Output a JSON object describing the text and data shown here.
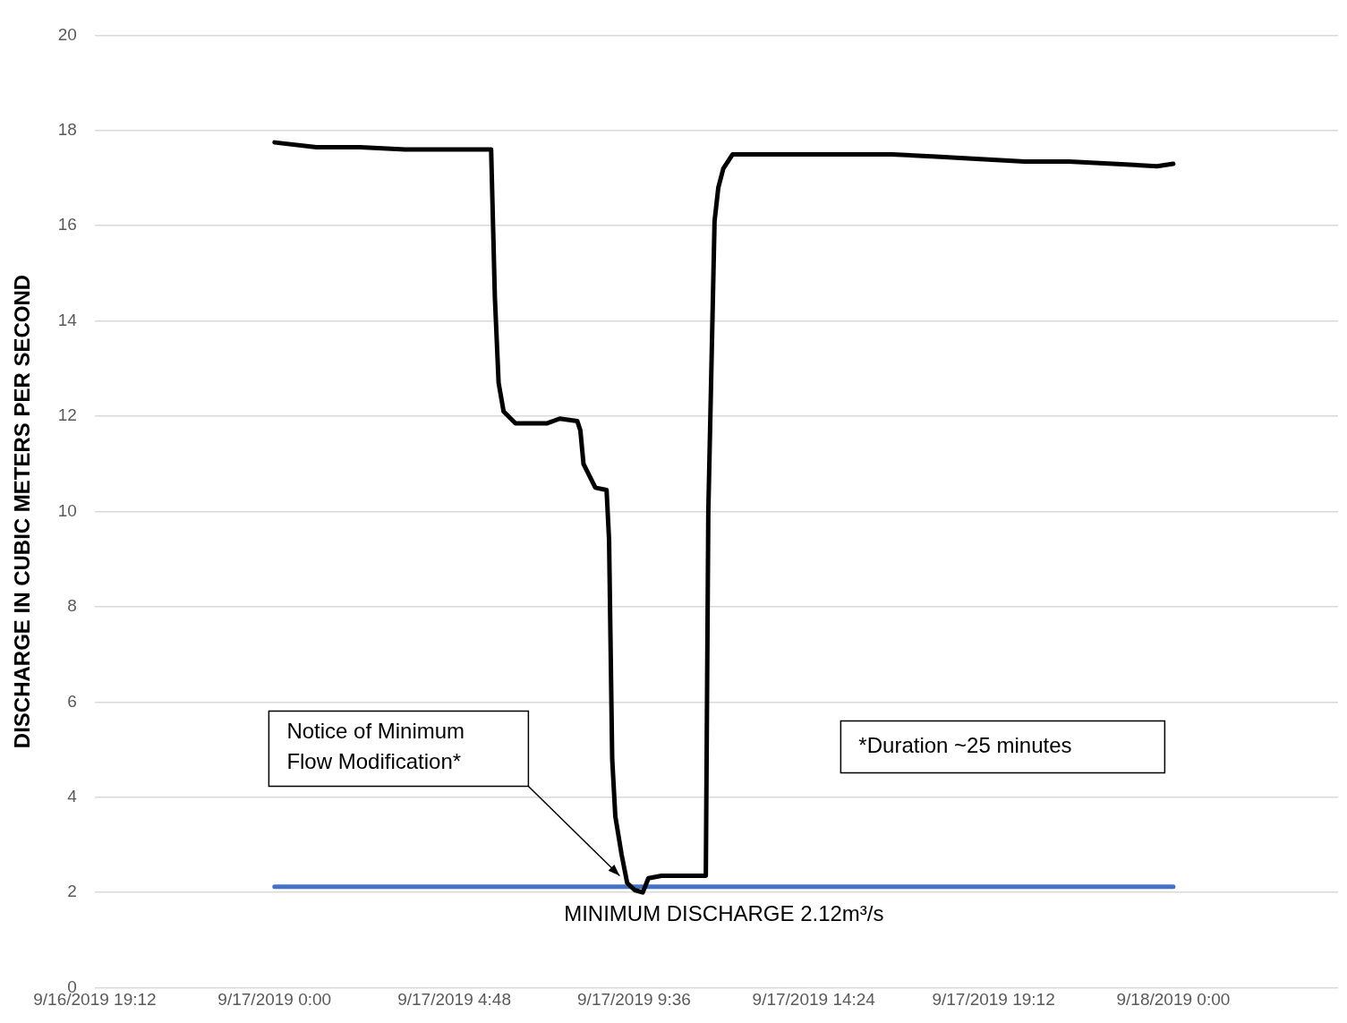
{
  "chart_data": {
    "type": "line",
    "ylabel": "DISCHARGE IN CUBIC METERS PER SECOND",
    "xlim": [
      "2019-09-16T19:12",
      "2019-09-18T04:24"
    ],
    "xticks": [
      {
        "value": "2019-09-16T19:12",
        "label": "9/16/2019 19:12"
      },
      {
        "value": "2019-09-17T00:00",
        "label": "9/17/2019 0:00"
      },
      {
        "value": "2019-09-17T04:48",
        "label": "9/17/2019 4:48"
      },
      {
        "value": "2019-09-17T09:36",
        "label": "9/17/2019 9:36"
      },
      {
        "value": "2019-09-17T14:24",
        "label": "9/17/2019 14:24"
      },
      {
        "value": "2019-09-17T19:12",
        "label": "9/17/2019 19:12"
      },
      {
        "value": "2019-09-18T00:00",
        "label": "9/18/2019 0:00"
      }
    ],
    "ylim": [
      0,
      20
    ],
    "yticks": [
      0,
      2,
      4,
      6,
      8,
      10,
      12,
      14,
      16,
      18,
      20
    ],
    "grid": "y",
    "legend": false,
    "marker": "none",
    "line_style": "solid",
    "series": [
      {
        "color": "#000000",
        "x": [
          "2019-09-17T00:00",
          "2019-09-17T01:07",
          "2019-09-17T02:17",
          "2019-09-17T03:29",
          "2019-09-17T04:40",
          "2019-09-17T05:47",
          "2019-09-17T05:53",
          "2019-09-17T05:59",
          "2019-09-17T06:07",
          "2019-09-17T06:26",
          "2019-09-17T07:16",
          "2019-09-17T07:37",
          "2019-09-17T08:05",
          "2019-09-17T08:10",
          "2019-09-17T08:15",
          "2019-09-17T08:34",
          "2019-09-17T08:52",
          "2019-09-17T08:56",
          "2019-09-17T09:01",
          "2019-09-17T09:06",
          "2019-09-17T09:16",
          "2019-09-17T09:25",
          "2019-09-17T09:37",
          "2019-09-17T09:50",
          "2019-09-17T09:59",
          "2019-09-17T10:20",
          "2019-09-17T10:49",
          "2019-09-17T11:31",
          "2019-09-17T11:35",
          "2019-09-17T11:45",
          "2019-09-17T11:51",
          "2019-09-17T11:59",
          "2019-09-17T12:14",
          "2019-09-17T12:56",
          "2019-09-17T14:07",
          "2019-09-17T15:18",
          "2019-09-17T16:29",
          "2019-09-17T17:40",
          "2019-09-17T18:51",
          "2019-09-17T20:02",
          "2019-09-17T21:13",
          "2019-09-17T22:23",
          "2019-09-17T23:34",
          "2019-09-18T00:00"
        ],
        "values": [
          17.75,
          17.65,
          17.65,
          17.6,
          17.6,
          17.6,
          14.5,
          12.7,
          12.1,
          11.85,
          11.85,
          11.95,
          11.9,
          11.7,
          11.0,
          10.5,
          10.45,
          9.4,
          4.8,
          3.6,
          2.8,
          2.2,
          2.05,
          2.0,
          2.3,
          2.35,
          2.35,
          2.35,
          10,
          16.1,
          16.8,
          17.2,
          17.5,
          17.5,
          17.5,
          17.5,
          17.5,
          17.45,
          17.4,
          17.35,
          17.35,
          17.3,
          17.25,
          17.3
        ]
      },
      {
        "name": "MINIMUM DISCHARGE 2.12m³/s",
        "color": "#4472c4",
        "x": [
          "2019-09-17T00:00",
          "2019-09-18T00:00"
        ],
        "values": [
          2.12,
          2.12
        ]
      }
    ],
    "annotations": [
      "Notice of Minimum Flow Modification*",
      "*Duration ~25 minutes"
    ]
  }
}
